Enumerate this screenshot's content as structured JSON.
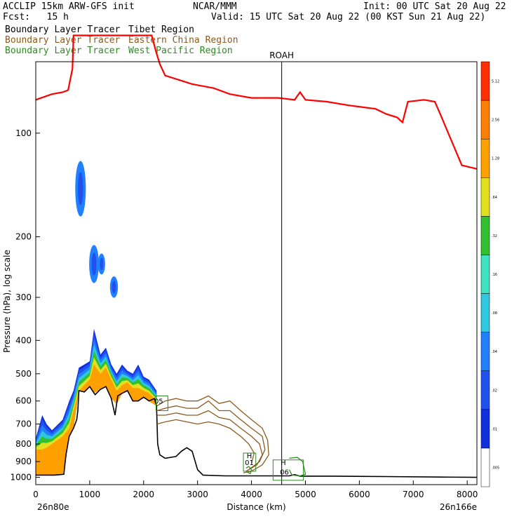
{
  "header": {
    "model": "ACCLIP 15km ARW-GFS init",
    "org": "NCAR/MMM",
    "init": "Init: 00 UTC Sat 20 Aug 22",
    "fcst": "Fcst:   15 h",
    "valid": "Valid: 15 UTC Sat 20 Aug 22 (00 KST Sun 21 Aug 22)",
    "tracers": [
      {
        "left": "Boundary Layer Tracer",
        "right": "Tibet Region",
        "color": "#000000"
      },
      {
        "left": "Boundary Layer Tracer",
        "right": "Eastern China Region",
        "color": "#8b5a1e"
      },
      {
        "left": "Boundary Layer Tracer",
        "right": "West Pacific Region",
        "color": "#2e8b22"
      }
    ]
  },
  "chart_data": {
    "type": "area",
    "xlabel": "Distance (km)",
    "ylabel": "Pressure (hPa), log scale",
    "x_ticks": [
      "0",
      "1000",
      "2000",
      "3000",
      "4000",
      "5000",
      "6000",
      "7000",
      "8000"
    ],
    "y_ticks": [
      "100",
      "200",
      "300",
      "400",
      "500",
      "600",
      "700",
      "800",
      "900",
      "1000"
    ],
    "xlim": [
      0,
      8180
    ],
    "ylim": [
      1050,
      62
    ],
    "y_scale": "log",
    "endpoints": {
      "left": "26n80e",
      "right": "26n166e"
    },
    "station": {
      "label": "ROAH",
      "x": 4560
    },
    "tropopause": {
      "color": "#ff0000",
      "points": [
        [
          0,
          80
        ],
        [
          300,
          77
        ],
        [
          500,
          76
        ],
        [
          600,
          75
        ],
        [
          680,
          65
        ],
        [
          700,
          52
        ],
        [
          1300,
          52
        ],
        [
          1650,
          52
        ],
        [
          2150,
          52
        ],
        [
          2230,
          58
        ],
        [
          2300,
          63
        ],
        [
          2400,
          68
        ],
        [
          2900,
          72
        ],
        [
          3300,
          74
        ],
        [
          3600,
          77
        ],
        [
          4000,
          79
        ],
        [
          4500,
          79
        ],
        [
          4800,
          80
        ],
        [
          4900,
          76
        ],
        [
          5000,
          80
        ],
        [
          5400,
          81
        ],
        [
          5800,
          83
        ],
        [
          6300,
          85
        ],
        [
          6500,
          88
        ],
        [
          6700,
          90
        ],
        [
          6800,
          93
        ],
        [
          6900,
          81
        ],
        [
          7200,
          80
        ],
        [
          7400,
          81
        ],
        [
          7500,
          88
        ],
        [
          7650,
          100
        ],
        [
          7900,
          124
        ],
        [
          8180,
          127
        ]
      ]
    },
    "terrain": {
      "color": "#000000",
      "points": [
        [
          0,
          985
        ],
        [
          350,
          985
        ],
        [
          520,
          980
        ],
        [
          560,
          860
        ],
        [
          620,
          760
        ],
        [
          700,
          720
        ],
        [
          760,
          680
        ],
        [
          780,
          640
        ],
        [
          800,
          560
        ],
        [
          900,
          565
        ],
        [
          1000,
          545
        ],
        [
          1100,
          575
        ],
        [
          1200,
          555
        ],
        [
          1300,
          545
        ],
        [
          1400,
          590
        ],
        [
          1470,
          660
        ],
        [
          1520,
          580
        ],
        [
          1600,
          570
        ],
        [
          1700,
          560
        ],
        [
          1800,
          600
        ],
        [
          1900,
          600
        ],
        [
          2000,
          585
        ],
        [
          2100,
          600
        ],
        [
          2200,
          590
        ],
        [
          2240,
          620
        ],
        [
          2260,
          800
        ],
        [
          2300,
          860
        ],
        [
          2400,
          880
        ],
        [
          2600,
          870
        ],
        [
          2700,
          840
        ],
        [
          2800,
          820
        ],
        [
          2900,
          840
        ],
        [
          3000,
          950
        ],
        [
          3100,
          985
        ],
        [
          3500,
          990
        ],
        [
          4000,
          990
        ],
        [
          4300,
          990
        ],
        [
          4700,
          990
        ],
        [
          4800,
          982
        ],
        [
          4900,
          992
        ],
        [
          5500,
          992
        ],
        [
          6500,
          995
        ],
        [
          7500,
          998
        ],
        [
          8180,
          1000
        ]
      ]
    },
    "tracer_tibet_fill": {
      "levels": [
        ".005",
        ".01",
        ".02",
        ".04",
        ".08",
        ".16",
        ".32",
        ".64",
        "1.28",
        "2.56",
        "5.12"
      ],
      "colors": [
        "#ffffff",
        "#1030e0",
        "#2050f0",
        "#2080ff",
        "#30c8e0",
        "#40e0c0",
        "#30c030",
        "#e0e020",
        "#ffa000",
        "#ff8000",
        "#ff3000"
      ],
      "profile": [
        {
          "x": 0,
          "top": 770,
          "orange": 830
        },
        {
          "x": 120,
          "top": 660,
          "orange": 830
        },
        {
          "x": 200,
          "top": 700,
          "orange": 820
        },
        {
          "x": 300,
          "top": 730,
          "orange": 800
        },
        {
          "x": 500,
          "top": 680,
          "orange": 760
        },
        {
          "x": 620,
          "top": 600,
          "orange": 720
        },
        {
          "x": 700,
          "top": 560,
          "orange": 640
        },
        {
          "x": 800,
          "top": 480,
          "orange": 560
        },
        {
          "x": 900,
          "top": 470,
          "orange": 540
        },
        {
          "x": 1000,
          "top": 460,
          "orange": 520
        },
        {
          "x": 1080,
          "top": 370,
          "orange": 470
        },
        {
          "x": 1200,
          "top": 440,
          "orange": 500
        },
        {
          "x": 1300,
          "top": 420,
          "orange": 480
        },
        {
          "x": 1400,
          "top": 470,
          "orange": 520
        },
        {
          "x": 1500,
          "top": 500,
          "orange": 560
        },
        {
          "x": 1600,
          "top": 470,
          "orange": 540
        },
        {
          "x": 1700,
          "top": 490,
          "orange": 530
        },
        {
          "x": 1800,
          "top": 500,
          "orange": 550
        },
        {
          "x": 1900,
          "top": 470,
          "orange": 550
        },
        {
          "x": 2000,
          "top": 510,
          "orange": 560
        },
        {
          "x": 2100,
          "top": 520,
          "orange": 570
        },
        {
          "x": 2240,
          "top": 560,
          "orange": 600
        }
      ],
      "blobs": [
        {
          "x": 830,
          "p": 145,
          "dx": 45,
          "dp": 28
        },
        {
          "x": 1080,
          "p": 240,
          "dx": 40,
          "dp": 30
        },
        {
          "x": 1220,
          "p": 240,
          "dx": 25,
          "dp": 15
        },
        {
          "x": 1450,
          "p": 280,
          "dx": 30,
          "dp": 18
        }
      ]
    },
    "tracer_eastern_china": {
      "color": "#8b5a1e",
      "contours": [
        [
          [
            2250,
            620
          ],
          [
            2400,
            600
          ],
          [
            2600,
            590
          ],
          [
            2800,
            600
          ],
          [
            3000,
            600
          ],
          [
            3200,
            580
          ],
          [
            3400,
            610
          ],
          [
            3600,
            600
          ],
          [
            3800,
            640
          ],
          [
            4000,
            680
          ],
          [
            4200,
            720
          ],
          [
            4300,
            780
          ],
          [
            4320,
            860
          ],
          [
            4200,
            920
          ],
          [
            4000,
            960
          ],
          [
            3850,
            970
          ]
        ],
        [
          [
            2250,
            640
          ],
          [
            2400,
            630
          ],
          [
            2600,
            620
          ],
          [
            2800,
            630
          ],
          [
            3000,
            630
          ],
          [
            3200,
            600
          ],
          [
            3400,
            640
          ],
          [
            3600,
            640
          ],
          [
            3800,
            680
          ],
          [
            4000,
            720
          ],
          [
            4200,
            760
          ],
          [
            4250,
            830
          ],
          [
            4150,
            900
          ],
          [
            3950,
            950
          ]
        ],
        [
          [
            2250,
            660
          ],
          [
            2400,
            660
          ],
          [
            2600,
            650
          ],
          [
            2800,
            660
          ],
          [
            3000,
            660
          ],
          [
            3200,
            640
          ],
          [
            3400,
            670
          ],
          [
            3600,
            680
          ],
          [
            3800,
            720
          ],
          [
            4000,
            760
          ],
          [
            4150,
            800
          ],
          [
            4200,
            860
          ],
          [
            4100,
            920
          ],
          [
            3900,
            960
          ]
        ],
        [
          [
            2250,
            700
          ],
          [
            2400,
            690
          ],
          [
            2600,
            680
          ],
          [
            2800,
            690
          ],
          [
            3000,
            700
          ],
          [
            3200,
            690
          ],
          [
            3400,
            700
          ],
          [
            3600,
            720
          ],
          [
            3800,
            760
          ],
          [
            3950,
            800
          ],
          [
            4050,
            850
          ],
          [
            4000,
            910
          ]
        ]
      ]
    },
    "tracer_west_pacific": {
      "color": "#2e8b22",
      "contours": [
        [
          [
            3900,
            940
          ],
          [
            3950,
            930
          ],
          [
            4000,
            950
          ],
          [
            3980,
            975
          ],
          [
            3920,
            965
          ]
        ],
        [
          [
            4700,
            880
          ],
          [
            4850,
            875
          ],
          [
            4950,
            900
          ],
          [
            5000,
            980
          ],
          [
            4900,
            990
          ],
          [
            4750,
            985
          ],
          [
            4700,
            950
          ]
        ]
      ]
    },
    "labels": [
      {
        "text": "05",
        "x": 2280,
        "p": 610
      },
      {
        "text": "H",
        "x": 3960,
        "p": 880
      },
      {
        "text": "01",
        "x": 3960,
        "p": 920
      },
      {
        "text": "H",
        "x": 4590,
        "p": 920
      },
      {
        "text": "06",
        "x": 4610,
        "p": 980
      }
    ],
    "label_boxes": [
      {
        "x0": 2230,
        "x1": 2450,
        "p0": 580,
        "p1": 640
      },
      {
        "x0": 3850,
        "x1": 4080,
        "p0": 850,
        "p1": 960
      },
      {
        "x0": 4400,
        "x1": 4960,
        "p0": 890,
        "p1": 1020
      }
    ]
  }
}
